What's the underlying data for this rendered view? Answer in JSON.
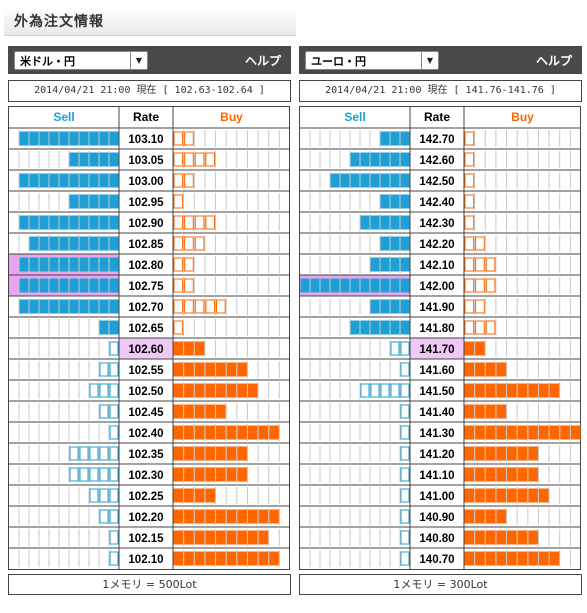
{
  "page_title": "外為注文情報",
  "colors": {
    "sell": "#1ea0d6",
    "buy": "#ff6600",
    "rate_highlight": "#f0c8f5",
    "sell_hl": "#e9a6ef"
  },
  "panels": [
    {
      "pair": "米ドル・円",
      "help_label": "ヘルプ",
      "timestamp": "2014/04/21  21:00 現在 [ 102.63-102.64 ]",
      "headers": {
        "sell": "Sell",
        "rate": "Rate",
        "buy": "Buy"
      },
      "footer": "1メモリ = 500Lot",
      "highlight_rate": "102.60",
      "sell_highlight_rates": [
        "102.80",
        "102.75"
      ],
      "rows": [
        {
          "rate": "103.10",
          "sell": 10,
          "buy": 2
        },
        {
          "rate": "103.05",
          "sell": 5,
          "buy": 4
        },
        {
          "rate": "103.00",
          "sell": 10,
          "buy": 2
        },
        {
          "rate": "102.95",
          "sell": 5,
          "buy": 1
        },
        {
          "rate": "102.90",
          "sell": 10,
          "buy": 4
        },
        {
          "rate": "102.85",
          "sell": 9,
          "buy": 3
        },
        {
          "rate": "102.80",
          "sell": 10,
          "buy": 2
        },
        {
          "rate": "102.75",
          "sell": 10,
          "buy": 2
        },
        {
          "rate": "102.70",
          "sell": 10,
          "buy": 5
        },
        {
          "rate": "102.65",
          "sell": 2,
          "buy": 1
        },
        {
          "rate": "102.60",
          "sell": 1,
          "buy": 3
        },
        {
          "rate": "102.55",
          "sell": 2,
          "buy": 7
        },
        {
          "rate": "102.50",
          "sell": 3,
          "buy": 8
        },
        {
          "rate": "102.45",
          "sell": 2,
          "buy": 5
        },
        {
          "rate": "102.40",
          "sell": 1,
          "buy": 10
        },
        {
          "rate": "102.35",
          "sell": 5,
          "buy": 7
        },
        {
          "rate": "102.30",
          "sell": 5,
          "buy": 7
        },
        {
          "rate": "102.25",
          "sell": 3,
          "buy": 4
        },
        {
          "rate": "102.20",
          "sell": 2,
          "buy": 10
        },
        {
          "rate": "102.15",
          "sell": 1,
          "buy": 9
        },
        {
          "rate": "102.10",
          "sell": 1,
          "buy": 10
        }
      ]
    },
    {
      "pair": "ユーロ・円",
      "help_label": "ヘルプ",
      "timestamp": "2014/04/21  21:00 現在 [ 141.76-141.76 ]",
      "headers": {
        "sell": "Sell",
        "rate": "Rate",
        "buy": "Buy"
      },
      "footer": "1メモリ = 300Lot",
      "highlight_rate": "141.70",
      "sell_highlight_rates": [
        "142.00"
      ],
      "rows": [
        {
          "rate": "142.70",
          "sell": 3,
          "buy": 1
        },
        {
          "rate": "142.60",
          "sell": 6,
          "buy": 1
        },
        {
          "rate": "142.50",
          "sell": 8,
          "buy": 1
        },
        {
          "rate": "142.40",
          "sell": 3,
          "buy": 1
        },
        {
          "rate": "142.30",
          "sell": 5,
          "buy": 1
        },
        {
          "rate": "142.20",
          "sell": 3,
          "buy": 2
        },
        {
          "rate": "142.10",
          "sell": 4,
          "buy": 3
        },
        {
          "rate": "142.00",
          "sell": 11,
          "buy": 3
        },
        {
          "rate": "141.90",
          "sell": 4,
          "buy": 2
        },
        {
          "rate": "141.80",
          "sell": 6,
          "buy": 3
        },
        {
          "rate": "141.70",
          "sell": 2,
          "buy": 2
        },
        {
          "rate": "141.60",
          "sell": 1,
          "buy": 4
        },
        {
          "rate": "141.50",
          "sell": 5,
          "buy": 9
        },
        {
          "rate": "141.40",
          "sell": 1,
          "buy": 4
        },
        {
          "rate": "141.30",
          "sell": 1,
          "buy": 11
        },
        {
          "rate": "141.20",
          "sell": 1,
          "buy": 7
        },
        {
          "rate": "141.10",
          "sell": 1,
          "buy": 7
        },
        {
          "rate": "141.00",
          "sell": 1,
          "buy": 8
        },
        {
          "rate": "140.90",
          "sell": 1,
          "buy": 4
        },
        {
          "rate": "140.80",
          "sell": 1,
          "buy": 7
        },
        {
          "rate": "140.70",
          "sell": 1,
          "buy": 9
        }
      ]
    }
  ]
}
